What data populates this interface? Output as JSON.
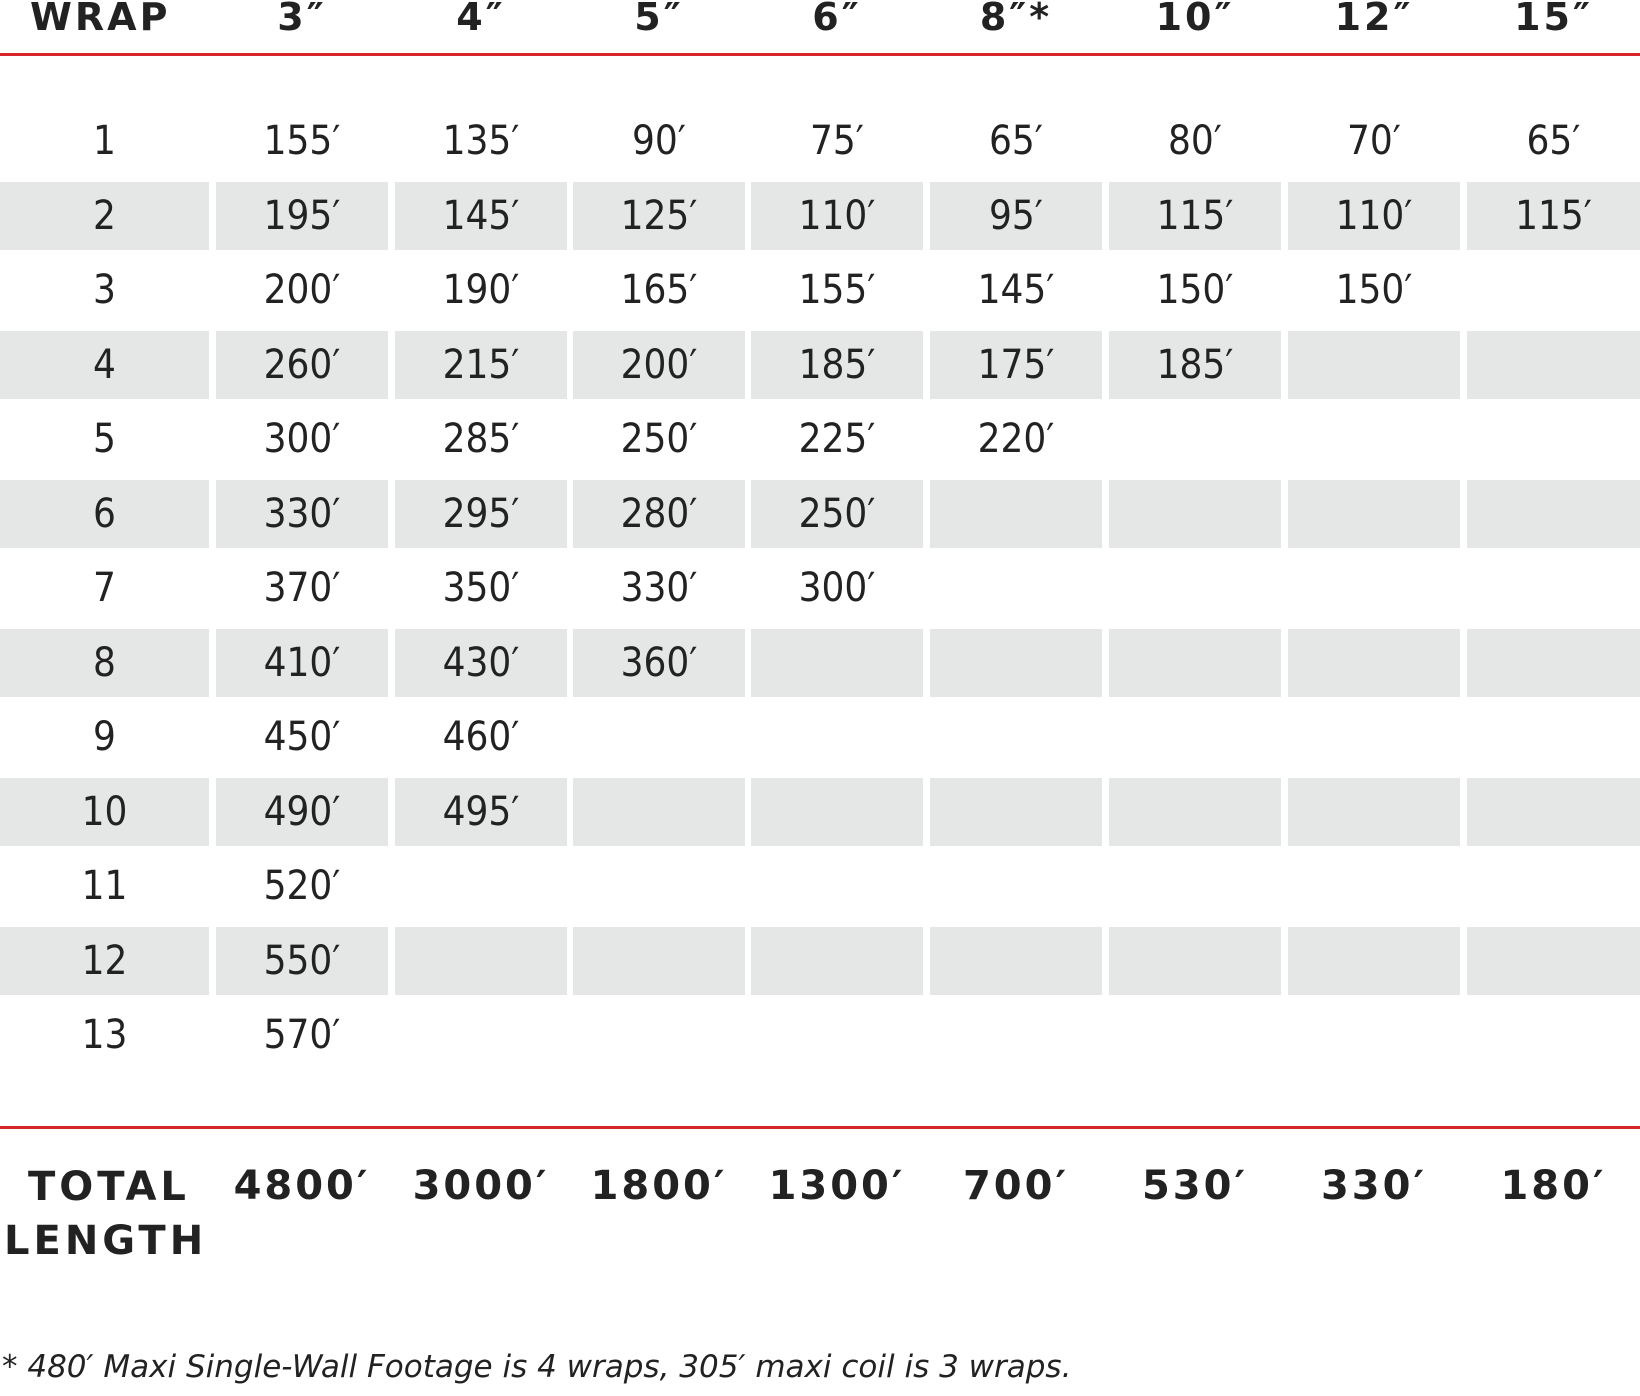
{
  "header": {
    "columns": [
      "WRAP",
      "3″",
      "4″",
      "5″",
      "6″",
      "8″*",
      "10″",
      "12″",
      "15″"
    ]
  },
  "rows": [
    {
      "wrap": "1",
      "values": [
        "155′",
        "135′",
        "90′",
        "75′",
        "65′",
        "80′",
        "70′",
        "65′"
      ]
    },
    {
      "wrap": "2",
      "values": [
        "195′",
        "145′",
        "125′",
        "110′",
        "95′",
        "115′",
        "110′",
        "115′"
      ]
    },
    {
      "wrap": "3",
      "values": [
        "200′",
        "190′",
        "165′",
        "155′",
        "145′",
        "150′",
        "150′",
        ""
      ]
    },
    {
      "wrap": "4",
      "values": [
        "260′",
        "215′",
        "200′",
        "185′",
        "175′",
        "185′",
        "",
        ""
      ]
    },
    {
      "wrap": "5",
      "values": [
        "300′",
        "285′",
        "250′",
        "225′",
        "220′",
        "",
        "",
        ""
      ]
    },
    {
      "wrap": "6",
      "values": [
        "330′",
        "295′",
        "280′",
        "250′",
        "",
        "",
        "",
        ""
      ]
    },
    {
      "wrap": "7",
      "values": [
        "370′",
        "350′",
        "330′",
        "300′",
        "",
        "",
        "",
        ""
      ]
    },
    {
      "wrap": "8",
      "values": [
        "410′",
        "430′",
        "360′",
        "",
        "",
        "",
        "",
        ""
      ]
    },
    {
      "wrap": "9",
      "values": [
        "450′",
        "460′",
        "",
        "",
        "",
        "",
        "",
        ""
      ]
    },
    {
      "wrap": "10",
      "values": [
        "490′",
        "495′",
        "",
        "",
        "",
        "",
        "",
        ""
      ]
    },
    {
      "wrap": "11",
      "values": [
        "520′",
        "",
        "",
        "",
        "",
        "",
        "",
        ""
      ]
    },
    {
      "wrap": "12",
      "values": [
        "550′",
        "",
        "",
        "",
        "",
        "",
        "",
        ""
      ]
    },
    {
      "wrap": "13",
      "values": [
        "570′",
        "",
        "",
        "",
        "",
        "",
        "",
        ""
      ]
    }
  ],
  "total": {
    "label_line1": "TOTAL",
    "label_line2": "LENGTH",
    "values": [
      "4800′",
      "3000′",
      "1800′",
      "1300′",
      "700′",
      "530′",
      "330′",
      "180′"
    ]
  },
  "footnote": "* 480′ Maxi Single-Wall Footage is 4 wraps, 305′ maxi coil is 3 wraps.",
  "colors": {
    "accent_line": "#d6252b",
    "row_shade": "#e5e6e6",
    "text": "#222222"
  }
}
